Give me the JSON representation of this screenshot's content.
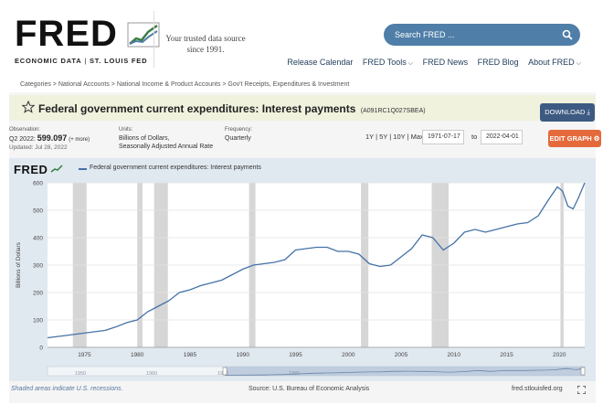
{
  "header": {
    "logo_text": "FRED",
    "logo_sub_bold": "ECONOMIC DATA",
    "logo_sub_sep": " | ",
    "logo_sub_light": "ST. LOUIS FED",
    "tagline": "Your trusted data source since 1991.",
    "search_placeholder": "Search FRED ...",
    "nav": [
      "Release Calendar",
      "FRED Tools",
      "FRED News",
      "FRED Blog",
      "About FRED"
    ]
  },
  "breadcrumb": "Categories > National Accounts > National Income & Product Accounts > Gov't Receipts, Expenditures & Investment",
  "series": {
    "title": "Federal government current expenditures: Interest payments",
    "code": "(A091RC1Q027SBEA)",
    "download_label": "DOWNLOAD",
    "observation_label": "Observation:",
    "observation_period": "Q2 2022:",
    "observation_value": "599.097",
    "observation_more": "(+ more)",
    "updated": "Updated: Jul 28, 2022",
    "units_label": "Units:",
    "units_line1": "Billions of Dollars,",
    "units_line2": "Seasonally Adjusted Annual Rate",
    "frequency_label": "Frequency:",
    "frequency_value": "Quarterly",
    "ranges": "1Y | 5Y | 10Y | Max",
    "date_from": "1971-07-17",
    "to_label": "to",
    "date_to": "2022-04-01",
    "edit_label": "EDIT GRAPH"
  },
  "chart_data": {
    "type": "line",
    "title": "",
    "legend": "Federal government current expenditures: Interest payments",
    "ylabel": "Billions of Dollars",
    "xlabel": "",
    "ylim": [
      0,
      600
    ],
    "xlim": [
      1971.5,
      2022.4
    ],
    "yticks": [
      0,
      100,
      200,
      300,
      400,
      500,
      600
    ],
    "xticks": [
      1975,
      1980,
      1985,
      1990,
      1995,
      2000,
      2005,
      2010,
      2015,
      2020
    ],
    "recessions": [
      [
        1973.9,
        1975.2
      ],
      [
        1980.0,
        1980.5
      ],
      [
        1981.6,
        1982.9
      ],
      [
        1990.6,
        1991.2
      ],
      [
        2001.2,
        2001.9
      ],
      [
        2007.9,
        2009.5
      ],
      [
        2020.1,
        2020.4
      ]
    ],
    "series": [
      {
        "name": "Federal government current expenditures: Interest payments",
        "x": [
          1971.5,
          1973,
          1975,
          1977,
          1978,
          1979,
          1980,
          1981,
          1982,
          1983,
          1984,
          1985,
          1986,
          1987,
          1988,
          1989,
          1990,
          1991,
          1992,
          1993,
          1994,
          1995,
          1996,
          1997,
          1998,
          1999,
          2000,
          2001,
          2002,
          2003,
          2004,
          2005,
          2006,
          2007,
          2008,
          2009,
          2010,
          2011,
          2012,
          2013,
          2014,
          2015,
          2016,
          2017,
          2018,
          2019,
          2019.8,
          2020.3,
          2020.8,
          2021.3,
          2021.8,
          2022.4
        ],
        "y": [
          35,
          42,
          52,
          62,
          75,
          90,
          100,
          130,
          150,
          170,
          200,
          210,
          225,
          235,
          245,
          265,
          285,
          300,
          305,
          310,
          320,
          355,
          360,
          365,
          365,
          350,
          350,
          340,
          305,
          295,
          300,
          330,
          360,
          410,
          400,
          355,
          380,
          420,
          430,
          420,
          430,
          440,
          450,
          455,
          480,
          540,
          585,
          570,
          515,
          505,
          545,
          600
        ]
      }
    ],
    "navigator_labels": [
      "1950",
      "1960",
      "1970",
      "1980"
    ]
  },
  "footer": {
    "note": "Shaded areas indicate U.S. recessions.",
    "source": "Source: U.S. Bureau of Economic Analysis",
    "url": "fred.stlouisfed.org"
  },
  "colors": {
    "line": "#4572a7",
    "recession": "#cccccc",
    "search": "#4f7ea8",
    "download": "#3d5b82",
    "edit": "#e56a3b"
  }
}
